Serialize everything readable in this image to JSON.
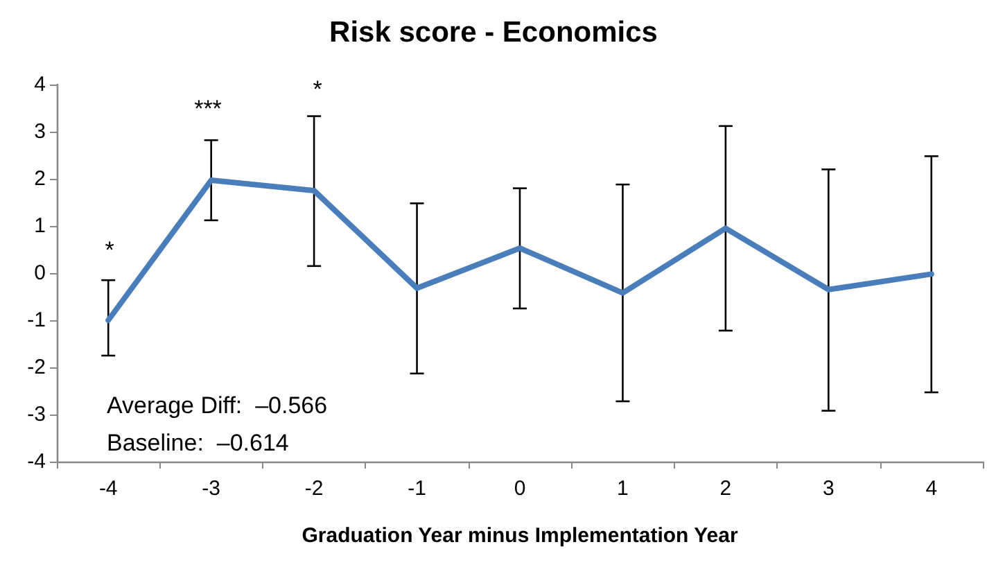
{
  "chart_data": {
    "type": "line",
    "title": "Risk score - Economics",
    "xlabel": "Graduation Year minus Implementation Year",
    "categories": [
      "-4",
      "-3",
      "-2",
      "-1",
      "0",
      "1",
      "2",
      "3",
      "4"
    ],
    "series": [
      {
        "color": "#4a7ebb",
        "values": [
          -1.0,
          1.97,
          1.75,
          -0.32,
          0.53,
          -0.42,
          0.95,
          -0.35,
          -0.02
        ],
        "errors": [
          [
            -1.75,
            -0.15
          ],
          [
            1.12,
            2.82
          ],
          [
            0.15,
            3.33
          ],
          [
            -2.13,
            1.48
          ],
          [
            -0.75,
            1.8
          ],
          [
            -2.72,
            1.88
          ],
          [
            -1.22,
            3.12
          ],
          [
            -2.92,
            2.2
          ],
          [
            -2.53,
            2.48
          ]
        ]
      }
    ],
    "ylim": [
      -4,
      4
    ],
    "yticks": [
      -4,
      -3,
      -2,
      -1,
      0,
      1,
      2,
      3,
      4
    ],
    "grid": false,
    "marker": "none",
    "line_style": "solid",
    "annotations": [
      "*",
      "***",
      "*",
      "Average Diff:  –0.566",
      "Baseline:  –0.614"
    ]
  }
}
